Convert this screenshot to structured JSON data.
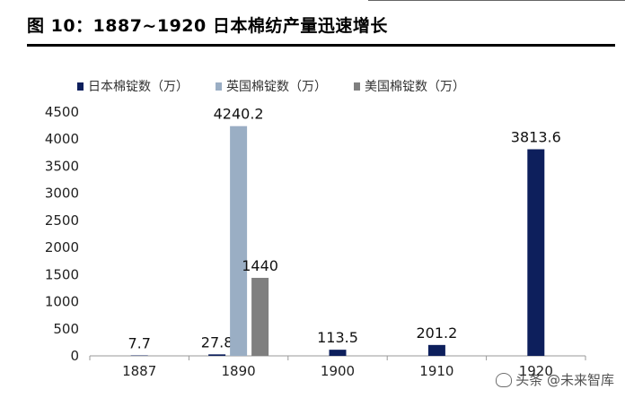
{
  "header": {
    "title": "图 10：1887~1920 日本棉纺产量迅速增长"
  },
  "watermark": {
    "text": "头条 @未来智库"
  },
  "chart_data": {
    "type": "bar",
    "title": "",
    "xlabel": "",
    "ylabel": "",
    "categories": [
      "1887",
      "1890",
      "1900",
      "1910",
      "1920"
    ],
    "ylim": [
      0,
      4500
    ],
    "yticks": [
      0,
      500,
      1000,
      1500,
      2000,
      2500,
      3000,
      3500,
      4000,
      4500
    ],
    "grid": false,
    "legend_position": "top",
    "series": [
      {
        "name": "日本棉锭数（万）",
        "color": "#0d1f5c",
        "values": [
          7.7,
          27.8,
          113.5,
          201.2,
          3813.6
        ],
        "labels": [
          "7.7",
          "27.8",
          "113.5",
          "201.2",
          "3813.6"
        ]
      },
      {
        "name": "英国棉锭数（万）",
        "color": "#9aaec4",
        "values": [
          null,
          4240.2,
          null,
          null,
          null
        ],
        "labels": [
          "",
          "4240.2",
          "",
          "",
          ""
        ]
      },
      {
        "name": "美国棉锭数（万）",
        "color": "#7f7f7f",
        "values": [
          null,
          1440,
          null,
          null,
          null
        ],
        "labels": [
          "",
          "1440",
          "",
          "",
          ""
        ]
      }
    ]
  }
}
